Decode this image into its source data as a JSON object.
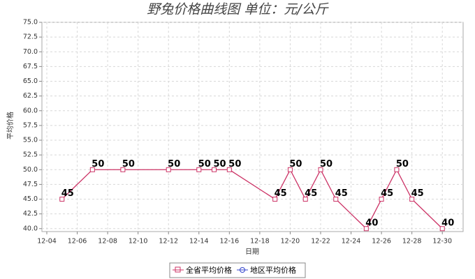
{
  "chart_data": {
    "type": "line",
    "title": "野兔价格曲线图     单位：元/公斤",
    "x_label": "日期",
    "y_label": "平均价格",
    "x": [
      "12-05",
      "12-07",
      "12-09",
      "12-12",
      "12-14",
      "12-15",
      "12-16",
      "12-19",
      "12-20",
      "12-21",
      "12-22",
      "12-23",
      "12-25",
      "12-26",
      "12-27",
      "12-28",
      "12-30"
    ],
    "series": [
      {
        "name": "全省平均价格",
        "color": "#cc3366",
        "marker": "square",
        "values": [
          45,
          50,
          50,
          50,
          50,
          50,
          50,
          45,
          50,
          45,
          50,
          45,
          40,
          45,
          50,
          45,
          40
        ]
      },
      {
        "name": "地区平均价格",
        "color": "#3344cc",
        "marker": "circle",
        "values": [
          null,
          null,
          null,
          null,
          null,
          null,
          null,
          null,
          null,
          null,
          null,
          null,
          null,
          null,
          null,
          null,
          null
        ]
      }
    ],
    "xlim": [
      "12-04",
      "12-31"
    ],
    "xticks": [
      "12-04",
      "12-06",
      "12-08",
      "12-10",
      "12-12",
      "12-14",
      "12-16",
      "12-18",
      "12-20",
      "12-22",
      "12-24",
      "12-26",
      "12-28",
      "12-30"
    ],
    "ylim": [
      39.5,
      75
    ],
    "yticks": [
      {
        "value": 40,
        "label": "40.0"
      },
      {
        "value": 42.5,
        "label": "42.5"
      },
      {
        "value": 45,
        "label": "45.0"
      },
      {
        "value": 47.5,
        "label": "47.5"
      },
      {
        "value": 50,
        "label": "50.0"
      },
      {
        "value": 52.5,
        "label": "52.5"
      },
      {
        "value": 55,
        "label": "55.0"
      },
      {
        "value": 57.5,
        "label": "57.5"
      },
      {
        "value": 60,
        "label": "60.0"
      },
      {
        "value": 62.5,
        "label": "62.5"
      },
      {
        "value": 65,
        "label": "65.0"
      },
      {
        "value": 67.5,
        "label": "67.5"
      },
      {
        "value": 70,
        "label": "70.0"
      },
      {
        "value": 72.5,
        "label": "72.5"
      },
      {
        "value": 75,
        "label": "75.0"
      }
    ],
    "grid": true
  }
}
